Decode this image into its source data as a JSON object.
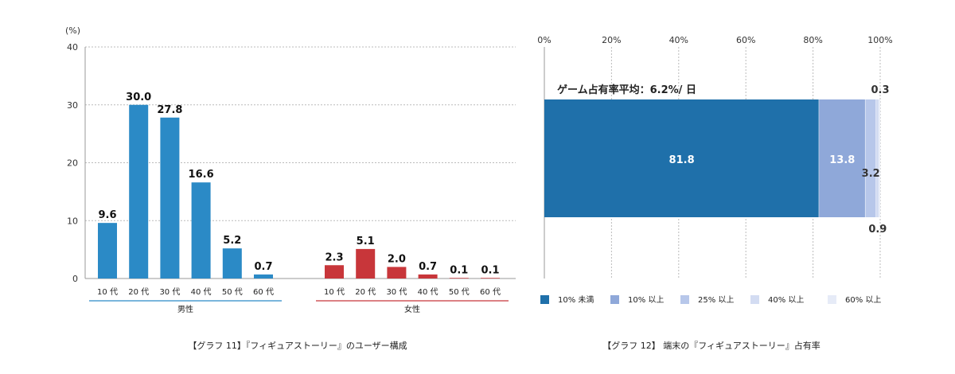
{
  "chart_data": [
    {
      "type": "bar",
      "caption": "【グラフ 11】『フィギュアストーリー』のユーザー構成",
      "ylabel": "(%)",
      "ylim": [
        0,
        40
      ],
      "yticks": [
        "0",
        "10",
        "20",
        "30",
        "40"
      ],
      "grid": true,
      "groups": [
        {
          "name": "男性",
          "color": "#2b8ac6",
          "categories": [
            "10 代",
            "20 代",
            "30 代",
            "40 代",
            "50 代",
            "60 代"
          ],
          "values": [
            9.6,
            30.0,
            27.8,
            16.6,
            5.2,
            0.7
          ],
          "labels": [
            "9.6",
            "30.0",
            "27.8",
            "16.6",
            "5.2",
            "0.7"
          ]
        },
        {
          "name": "女性",
          "color": "#c8363a",
          "categories": [
            "10 代",
            "20 代",
            "30 代",
            "40 代",
            "50 代",
            "60 代"
          ],
          "values": [
            2.3,
            5.1,
            2.0,
            0.7,
            0.1,
            0.1
          ],
          "labels": [
            "2.3",
            "5.1",
            "2.0",
            "0.7",
            "0.1",
            "0.1"
          ]
        }
      ]
    },
    {
      "type": "bar",
      "orientation": "horizontal-stacked",
      "caption": "【グラフ 12】 端末の『フィギュアストーリー』占有率",
      "title": "ゲーム占有率平均：6.2%/ 日",
      "xlim": [
        0,
        100
      ],
      "xticks": [
        "0%",
        "20%",
        "40%",
        "60%",
        "80%",
        "100%"
      ],
      "grid": true,
      "legend_position": "bottom",
      "series": [
        {
          "name": "10% 未満",
          "value": 81.8,
          "label": "81.8",
          "color": "#1f70aa"
        },
        {
          "name": "10% 以上",
          "value": 13.8,
          "label": "13.8",
          "color": "#8fa8d9"
        },
        {
          "name": "25% 以上",
          "value": 3.2,
          "label": "3.2",
          "color": "#b7c7ea"
        },
        {
          "name": "40% 以上",
          "value": 0.9,
          "label": "0.9",
          "color": "#d3dcf2"
        },
        {
          "name": "60% 以上",
          "value": 0.3,
          "label": "0.3",
          "color": "#e6ebf7"
        }
      ]
    }
  ]
}
